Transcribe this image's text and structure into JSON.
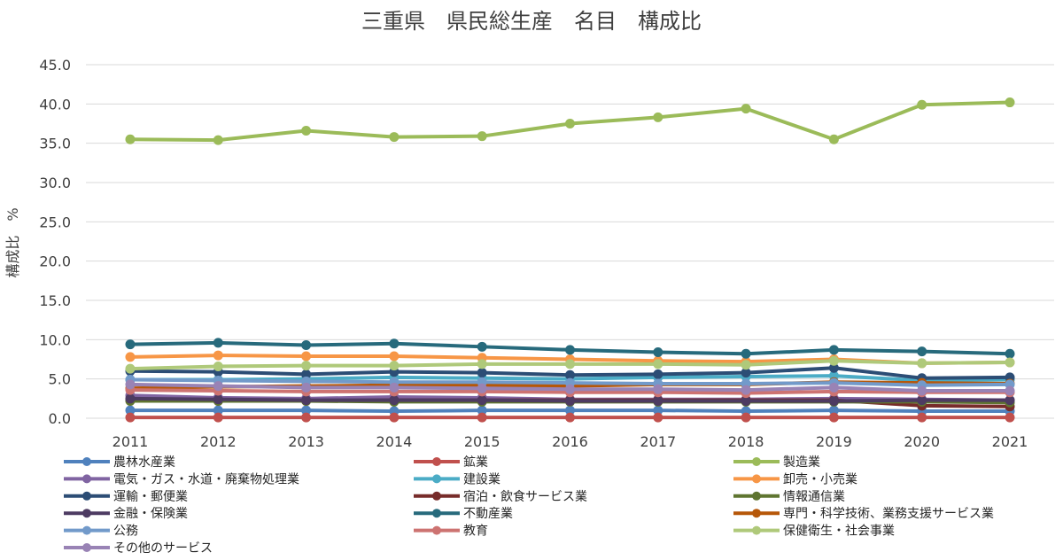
{
  "chart_data": {
    "type": "line",
    "title": "三重県　県民総生産　名目　構成比",
    "xlabel": "",
    "ylabel": "構成比　%",
    "ylim": [
      0,
      45
    ],
    "yticks": [
      "0.0",
      "5.0",
      "10.0",
      "15.0",
      "20.0",
      "25.0",
      "30.0",
      "35.0",
      "40.0",
      "45.0"
    ],
    "grid": true,
    "legend_position": "bottom",
    "x": [
      "2011",
      "2012",
      "2013",
      "2014",
      "2015",
      "2016",
      "2017",
      "2018",
      "2019",
      "2020",
      "2021"
    ],
    "series": [
      {
        "name": "農林水産業",
        "color": "#4f81bd",
        "values": [
          1.0,
          1.0,
          1.0,
          0.9,
          1.0,
          1.0,
          1.0,
          0.9,
          1.0,
          0.9,
          0.9
        ]
      },
      {
        "name": "鉱業",
        "color": "#c0504d",
        "values": [
          0.1,
          0.1,
          0.1,
          0.1,
          0.1,
          0.1,
          0.1,
          0.1,
          0.1,
          0.1,
          0.1
        ]
      },
      {
        "name": "製造業",
        "color": "#9bbb59",
        "values": [
          35.5,
          35.4,
          36.6,
          35.8,
          35.9,
          37.5,
          38.3,
          39.4,
          35.5,
          39.9,
          40.2
        ]
      },
      {
        "name": "電気・ガス・水道・廃棄物処理業",
        "color": "#8064a2",
        "values": [
          2.9,
          2.6,
          2.5,
          2.7,
          2.6,
          2.4,
          2.4,
          2.4,
          2.5,
          2.4,
          2.3
        ]
      },
      {
        "name": "建設業",
        "color": "#4bacc6",
        "values": [
          4.9,
          4.9,
          5.0,
          5.2,
          5.1,
          5.0,
          5.2,
          5.3,
          5.4,
          4.8,
          4.9
        ]
      },
      {
        "name": "卸売・小売業",
        "color": "#f79646",
        "values": [
          7.8,
          8.0,
          7.9,
          7.9,
          7.7,
          7.5,
          7.3,
          7.2,
          7.5,
          7.0,
          7.1
        ]
      },
      {
        "name": "運輸・郵便業",
        "color": "#2c4d75",
        "values": [
          6.0,
          5.9,
          5.6,
          5.9,
          5.8,
          5.5,
          5.6,
          5.8,
          6.4,
          5.1,
          5.2
        ]
      },
      {
        "name": "宿泊・飲食サービス業",
        "color": "#772c2a",
        "values": [
          2.3,
          2.2,
          2.2,
          2.3,
          2.3,
          2.3,
          2.3,
          2.3,
          2.3,
          1.6,
          1.5
        ]
      },
      {
        "name": "情報通信業",
        "color": "#5f7530",
        "values": [
          2.2,
          2.2,
          2.2,
          2.1,
          2.1,
          2.1,
          2.1,
          2.1,
          2.1,
          2.1,
          2.0
        ]
      },
      {
        "name": "金融・保険業",
        "color": "#4d3b62",
        "values": [
          2.5,
          2.4,
          2.3,
          2.3,
          2.3,
          2.2,
          2.2,
          2.2,
          2.2,
          2.3,
          2.3
        ]
      },
      {
        "name": "不動産業",
        "color": "#276a7c",
        "values": [
          9.4,
          9.6,
          9.3,
          9.5,
          9.1,
          8.7,
          8.4,
          8.2,
          8.7,
          8.5,
          8.2
        ]
      },
      {
        "name": "専門・科学技術、業務支援サービス業",
        "color": "#b65708",
        "values": [
          3.8,
          4.0,
          4.1,
          4.2,
          4.2,
          4.1,
          4.3,
          4.3,
          4.6,
          4.5,
          4.4
        ]
      },
      {
        "name": "公務",
        "color": "#729aca",
        "values": [
          4.9,
          4.8,
          4.7,
          4.6,
          4.6,
          4.5,
          4.4,
          4.4,
          4.5,
          4.2,
          4.3
        ]
      },
      {
        "name": "教育",
        "color": "#cd7371",
        "values": [
          3.6,
          3.5,
          3.4,
          3.4,
          3.4,
          3.3,
          3.3,
          3.2,
          3.4,
          3.3,
          3.3
        ]
      },
      {
        "name": "保健衛生・社会事業",
        "color": "#afc97a",
        "values": [
          6.3,
          6.6,
          6.7,
          6.7,
          6.9,
          6.9,
          6.9,
          6.8,
          7.3,
          7.0,
          7.1
        ]
      },
      {
        "name": "その他のサービス",
        "color": "#9983b5",
        "values": [
          4.3,
          4.1,
          3.9,
          3.9,
          3.8,
          3.7,
          3.7,
          3.6,
          3.9,
          3.5,
          3.5
        ]
      }
    ]
  }
}
